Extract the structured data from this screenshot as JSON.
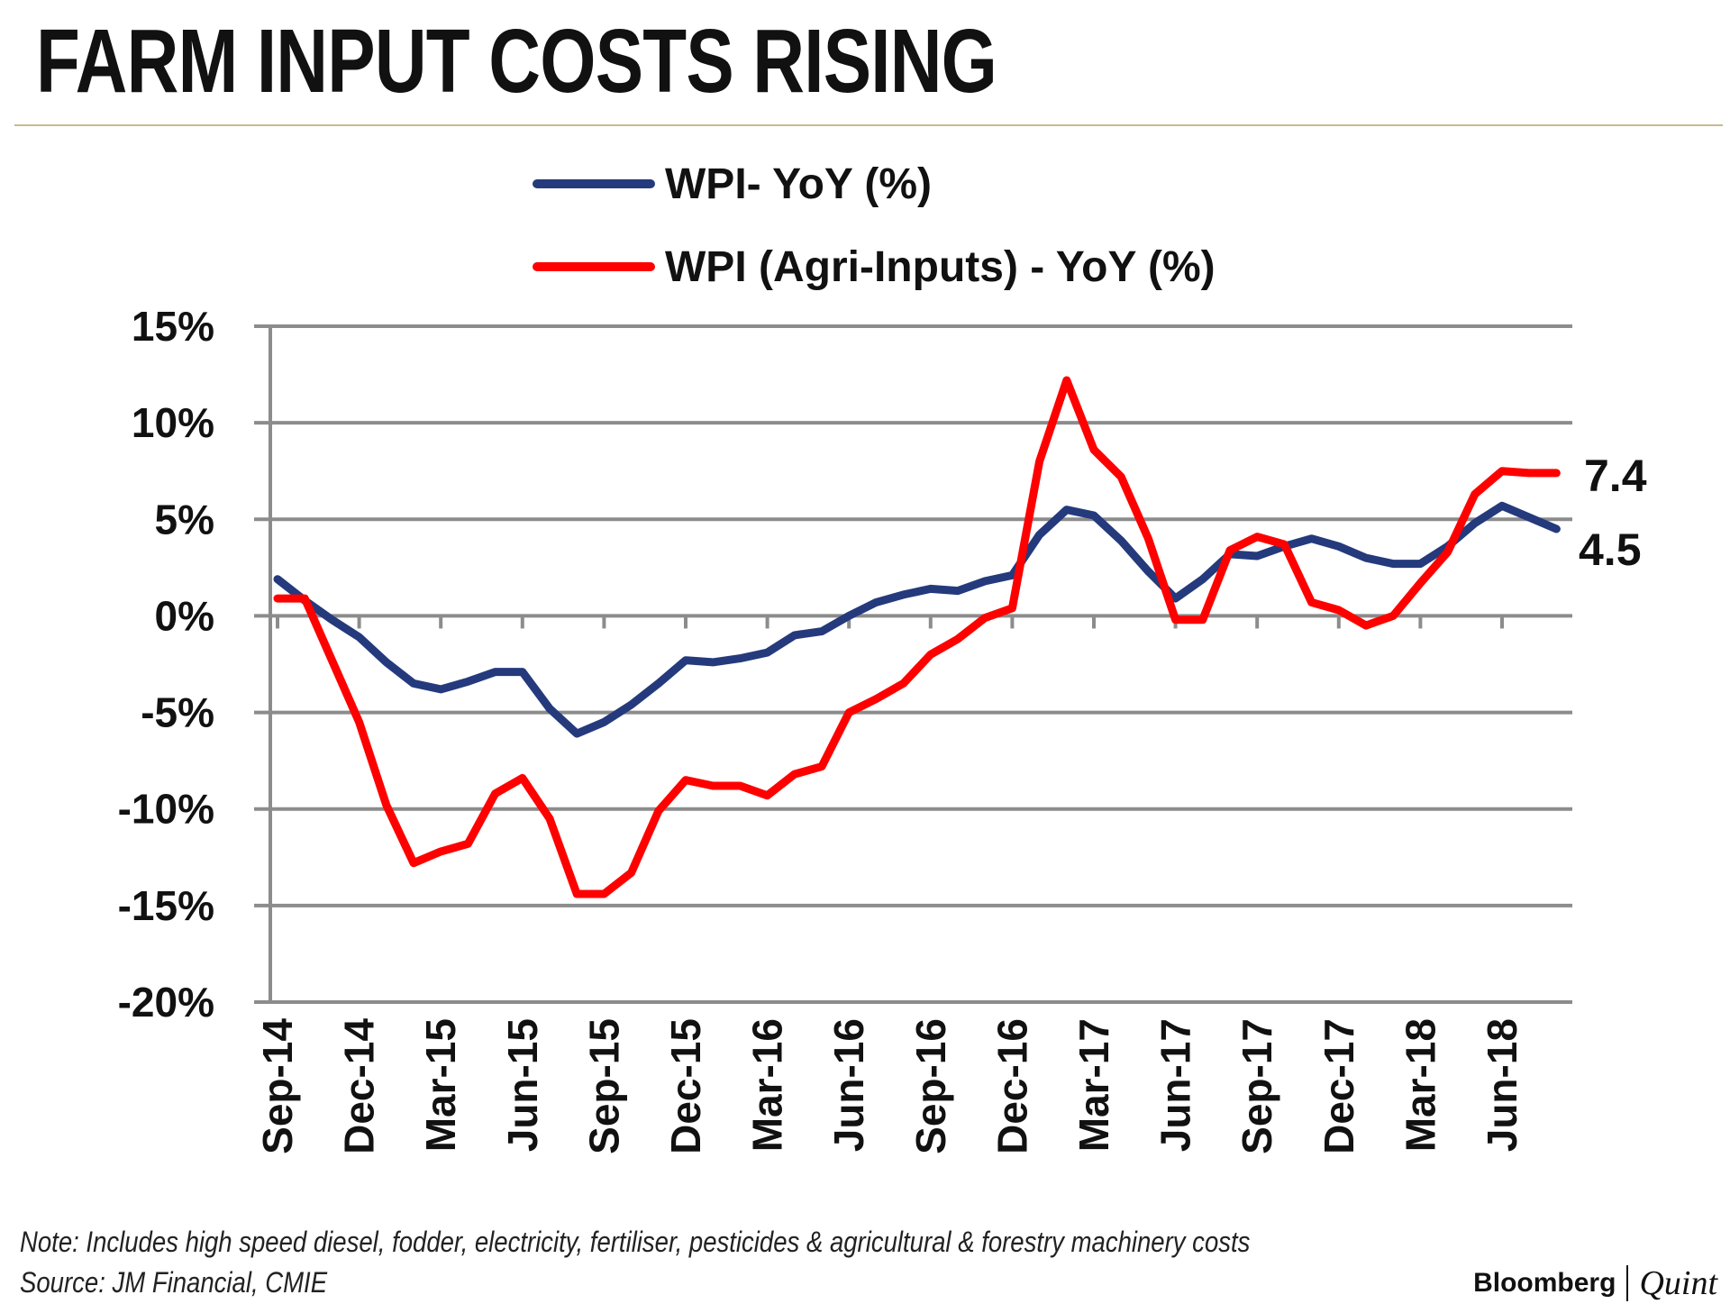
{
  "header": {
    "title": "FARM INPUT COSTS RISING"
  },
  "footer": {
    "note": "Note: Includes high speed diesel, fodder, electricity, fertiliser, pesticides &  agricultural & forestry machinery costs",
    "source": "Source: JM Financial, CMIE",
    "brand_primary": "Bloomberg",
    "brand_secondary": "Quint"
  },
  "colors": {
    "wpi": "#243a7c",
    "agri": "#ff0000",
    "grid": "#8c8c8c",
    "text": "#111111"
  },
  "chart_data": {
    "type": "line",
    "title": "FARM INPUT COSTS RISING",
    "xlabel": "",
    "ylabel": "",
    "ylim": [
      -20,
      15
    ],
    "yticks": [
      15,
      10,
      5,
      0,
      -5,
      -10,
      -15,
      -20
    ],
    "ytick_labels": [
      "15%",
      "10%",
      "5%",
      "0%",
      "-5%",
      "-10%",
      "-15%",
      "-20%"
    ],
    "xtick_labels": [
      "Sep-14",
      "Dec-14",
      "Mar-15",
      "Jun-15",
      "Sep-15",
      "Dec-15",
      "Mar-16",
      "Jun-16",
      "Sep-16",
      "Dec-16",
      "Mar-17",
      "Jun-17",
      "Sep-17",
      "Dec-17",
      "Mar-18",
      "Jun-18"
    ],
    "legend_position": "top-center",
    "grid": true,
    "x": [
      "Sep-14",
      "Oct-14",
      "Nov-14",
      "Dec-14",
      "Jan-15",
      "Feb-15",
      "Mar-15",
      "Apr-15",
      "May-15",
      "Jun-15",
      "Jul-15",
      "Aug-15",
      "Sep-15",
      "Oct-15",
      "Nov-15",
      "Dec-15",
      "Jan-16",
      "Feb-16",
      "Mar-16",
      "Apr-16",
      "May-16",
      "Jun-16",
      "Jul-16",
      "Aug-16",
      "Sep-16",
      "Oct-16",
      "Nov-16",
      "Dec-16",
      "Jan-17",
      "Feb-17",
      "Mar-17",
      "Apr-17",
      "May-17",
      "Jun-17",
      "Jul-17",
      "Aug-17",
      "Sep-17",
      "Oct-17",
      "Nov-17",
      "Dec-17",
      "Jan-18",
      "Feb-18",
      "Mar-18",
      "Apr-18",
      "May-18",
      "Jun-18",
      "Jul-18",
      "Aug-18"
    ],
    "series": [
      {
        "name": "WPI- YoY (%)",
        "color": "#243a7c",
        "values": [
          1.9,
          0.8,
          -0.2,
          -1.1,
          -2.4,
          -3.5,
          -3.8,
          -3.4,
          -2.9,
          -2.9,
          -4.8,
          -6.1,
          -5.5,
          -4.6,
          -3.5,
          -2.3,
          -2.4,
          -2.2,
          -1.9,
          -1.0,
          -0.8,
          0.0,
          0.7,
          1.1,
          1.4,
          1.3,
          1.8,
          2.1,
          4.2,
          5.5,
          5.2,
          3.9,
          2.3,
          0.9,
          1.9,
          3.2,
          3.1,
          3.6,
          4.0,
          3.6,
          3.0,
          2.7,
          2.7,
          3.6,
          4.8,
          5.7,
          5.1,
          4.5
        ]
      },
      {
        "name": "WPI (Agri-Inputs) - YoY (%)",
        "color": "#ff0000",
        "values": [
          0.9,
          0.9,
          -2.3,
          -5.5,
          -9.8,
          -12.8,
          -12.2,
          -11.8,
          -9.2,
          -8.4,
          -10.5,
          -14.4,
          -14.4,
          -13.3,
          -10.1,
          -8.5,
          -8.8,
          -8.8,
          -9.3,
          -8.2,
          -7.8,
          -5.0,
          -4.3,
          -3.5,
          -2.0,
          -1.2,
          -0.1,
          0.4,
          8.0,
          12.2,
          8.6,
          7.2,
          4.0,
          -0.2,
          -0.2,
          3.4,
          4.1,
          3.7,
          0.7,
          0.3,
          -0.5,
          0.0,
          1.7,
          3.3,
          6.3,
          7.5,
          7.4,
          7.4
        ]
      }
    ],
    "end_labels": {
      "agri": "7.4",
      "wpi": "4.5"
    }
  }
}
